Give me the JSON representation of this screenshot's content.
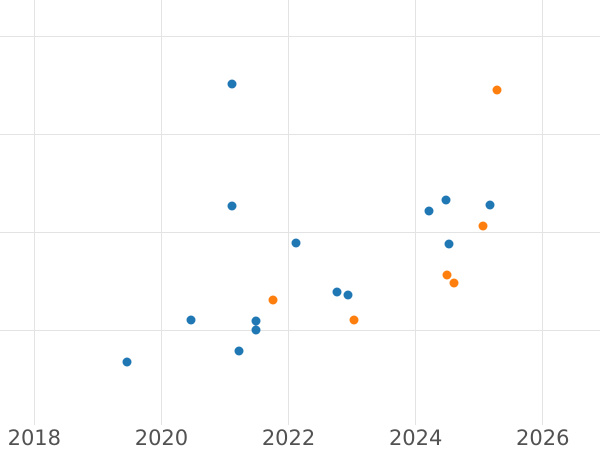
{
  "chart_data": {
    "type": "scatter",
    "title": "",
    "xlabel": "",
    "ylabel": "",
    "grid": true,
    "legend": false,
    "x_axis": {
      "tick_values": [
        2018,
        2020,
        2022,
        2024,
        2026
      ],
      "tick_labels": [
        "2018",
        "2020",
        "2022",
        "2024",
        "2026"
      ],
      "xlim": [
        2017.46,
        2026.9
      ]
    },
    "y_axis": {
      "tick_labels_visible": false,
      "unit": "unlabeled-grid-steps",
      "gridline_values": [
        1,
        2,
        3,
        4
      ],
      "ylim": [
        -0.22,
        4.37
      ]
    },
    "series": [
      {
        "name": "blue-series",
        "color": "#1f77b4",
        "points": [
          {
            "x": 2019.46,
            "y": 0.68
          },
          {
            "x": 2020.46,
            "y": 1.11
          },
          {
            "x": 2021.11,
            "y": 3.51
          },
          {
            "x": 2021.11,
            "y": 2.27
          },
          {
            "x": 2021.22,
            "y": 0.79
          },
          {
            "x": 2021.49,
            "y": 1.1
          },
          {
            "x": 2021.49,
            "y": 1.0
          },
          {
            "x": 2022.12,
            "y": 1.89
          },
          {
            "x": 2022.76,
            "y": 1.39
          },
          {
            "x": 2022.94,
            "y": 1.36
          },
          {
            "x": 2024.21,
            "y": 2.22
          },
          {
            "x": 2024.48,
            "y": 2.33
          },
          {
            "x": 2024.53,
            "y": 1.88
          },
          {
            "x": 2025.17,
            "y": 2.28
          }
        ]
      },
      {
        "name": "orange-series",
        "color": "#ff7f0e",
        "points": [
          {
            "x": 2021.76,
            "y": 1.31
          },
          {
            "x": 2023.03,
            "y": 1.11
          },
          {
            "x": 2024.5,
            "y": 1.57
          },
          {
            "x": 2024.61,
            "y": 1.48
          },
          {
            "x": 2025.06,
            "y": 2.06
          },
          {
            "x": 2025.28,
            "y": 3.45
          }
        ]
      }
    ]
  },
  "style": {
    "background": "#ffffff",
    "grid_color": "#e3e3e3",
    "tick_label_color": "#525252",
    "tick_label_font_size_px": 21
  }
}
